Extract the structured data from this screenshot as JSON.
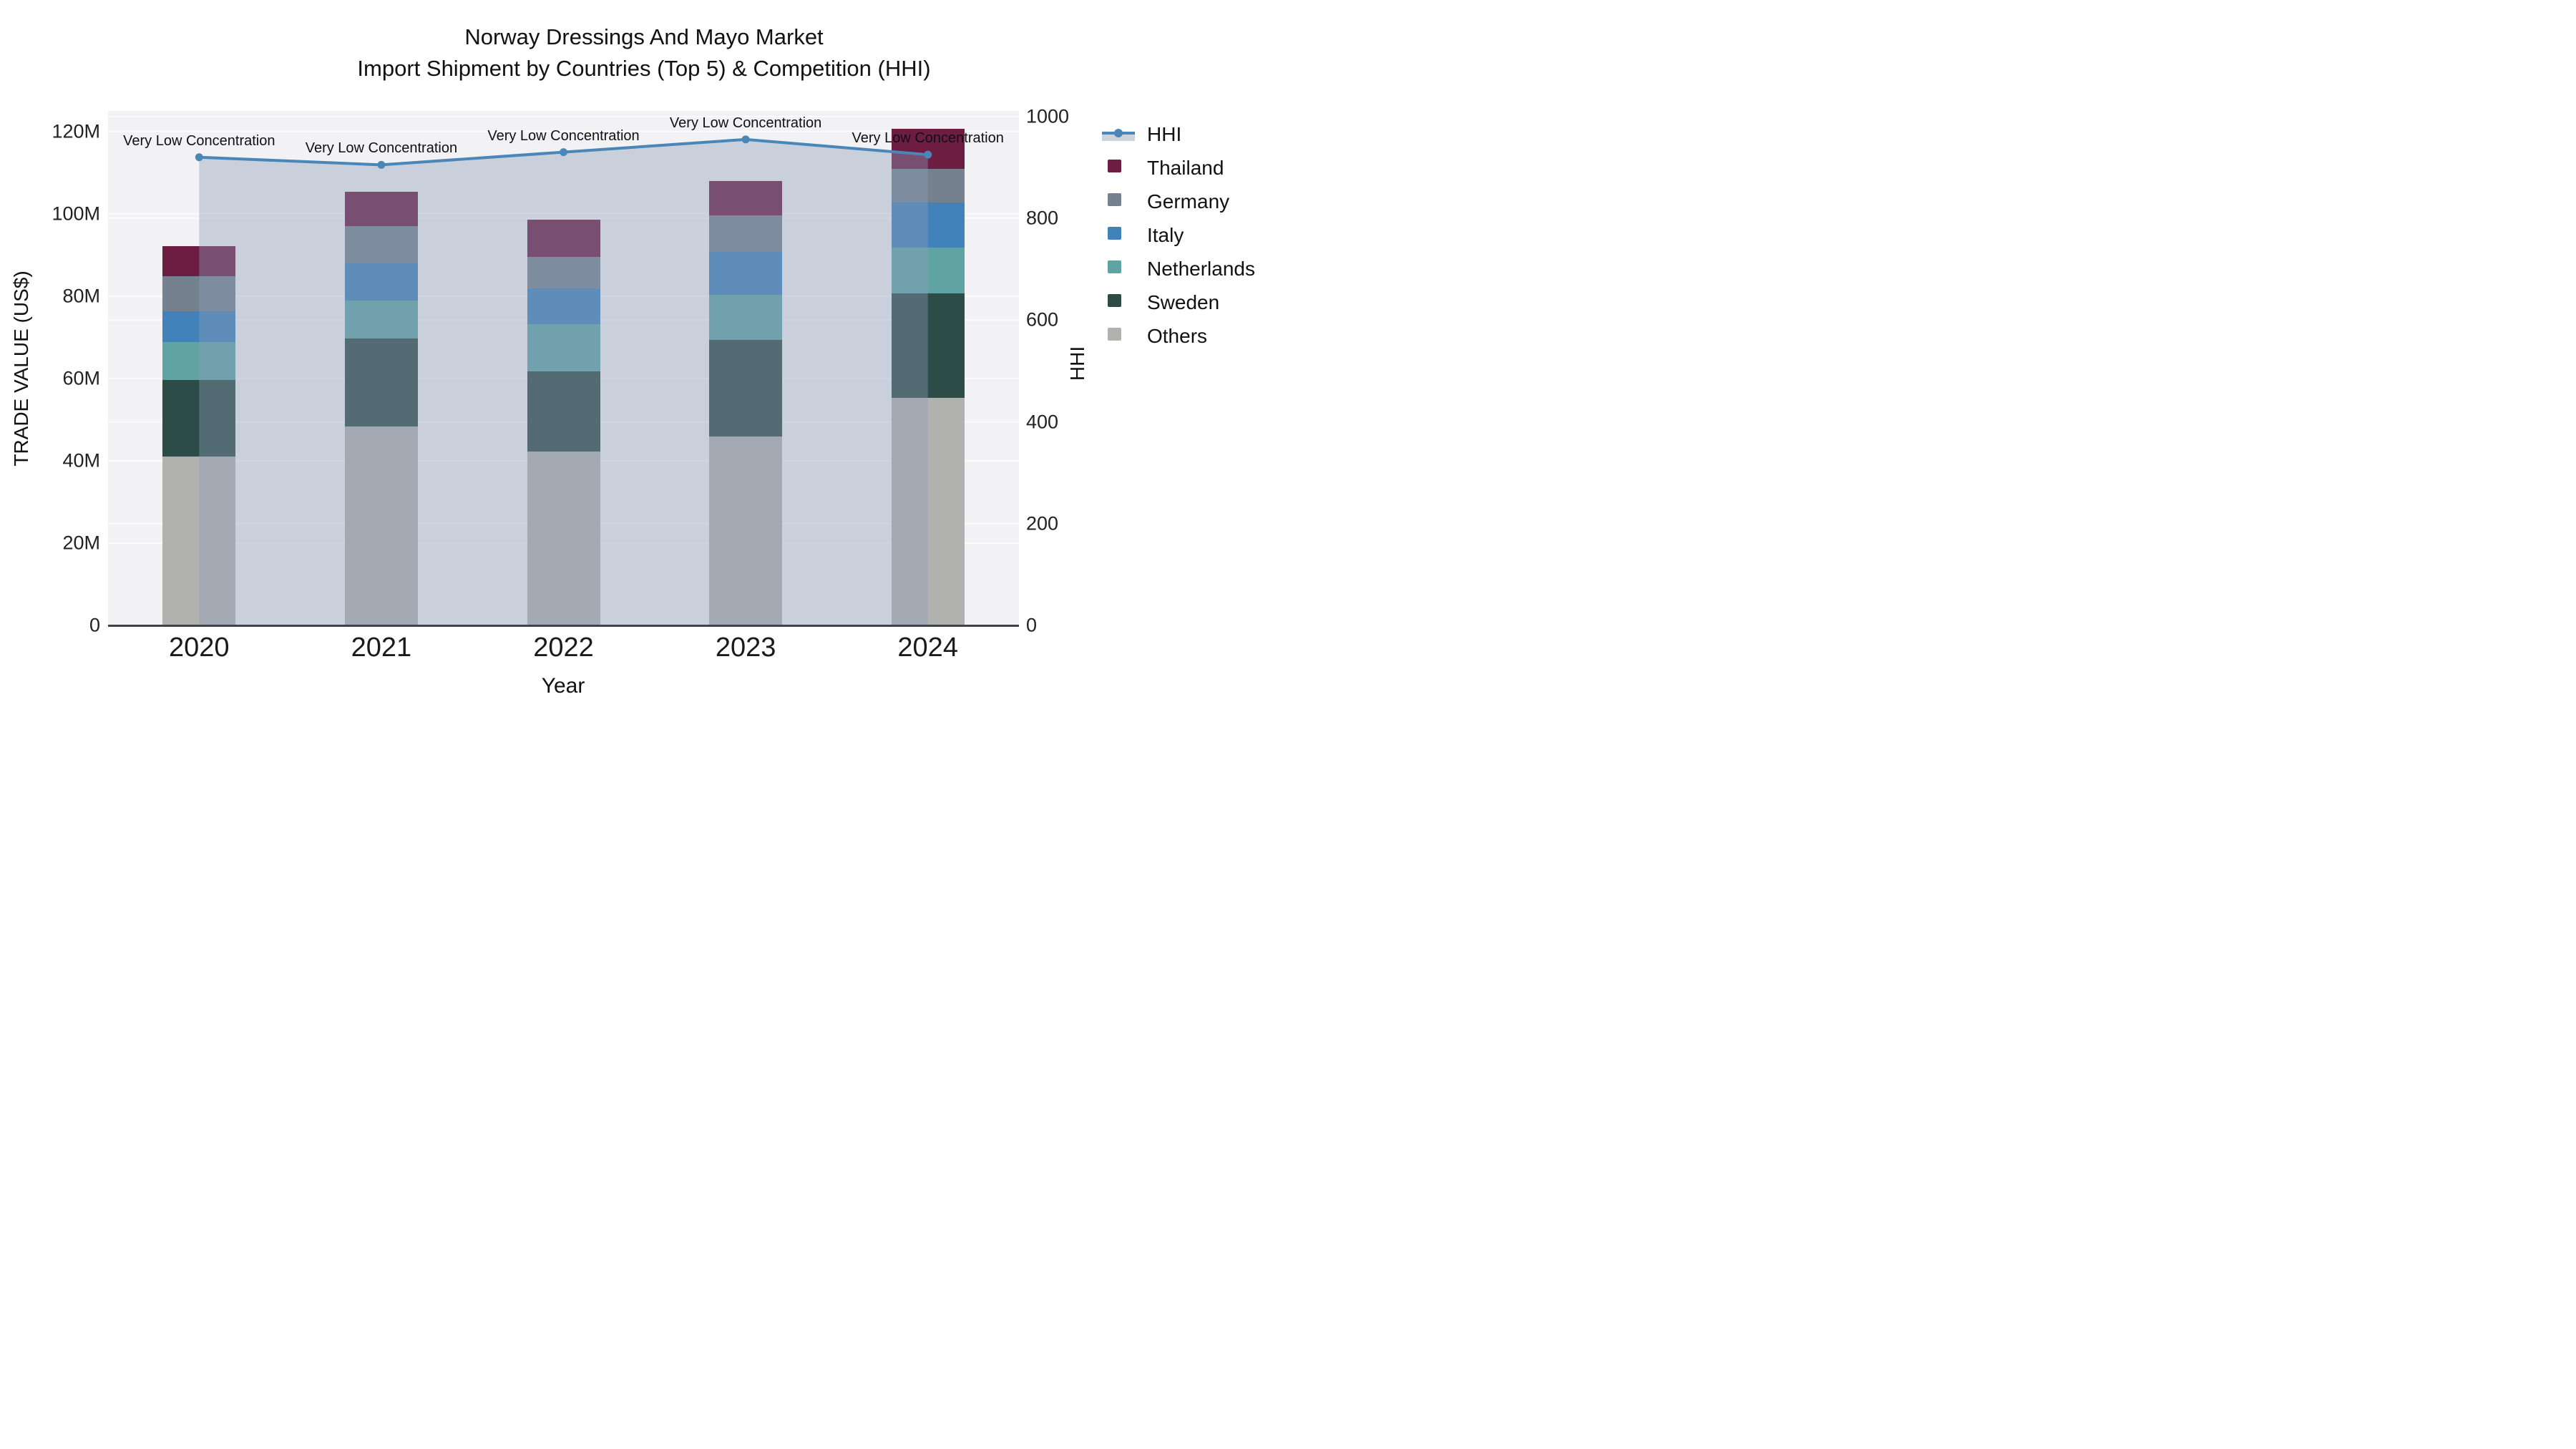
{
  "title": {
    "line1": "Norway Dressings And Mayo Market",
    "line2": "Import Shipment by Countries (Top 5) & Competition (HHI)"
  },
  "chart_data": {
    "type": "bar",
    "subtype": "stacked-bars-with-line-overlay-and-area-fill",
    "categories": [
      "2020",
      "2021",
      "2022",
      "2023",
      "2024"
    ],
    "values_unit": "Million US$",
    "series": [
      {
        "name": "Others",
        "color": "#b1b1af",
        "values": [
          41.0,
          48.3,
          42.3,
          45.9,
          55.3
        ]
      },
      {
        "name": "Sweden",
        "color": "#2d4c47",
        "values": [
          18.7,
          21.4,
          19.5,
          23.5,
          25.4
        ]
      },
      {
        "name": "Netherlands",
        "color": "#5fa4a3",
        "values": [
          9.2,
          9.3,
          11.4,
          11.0,
          11.1
        ]
      },
      {
        "name": "Italy",
        "color": "#4282bb",
        "values": [
          7.4,
          9.0,
          8.6,
          10.3,
          11.0
        ]
      },
      {
        "name": "Germany",
        "color": "#75818e",
        "values": [
          8.6,
          9.0,
          7.7,
          8.9,
          8.2
        ]
      },
      {
        "name": "Thailand",
        "color": "#6d1c42",
        "values": [
          7.2,
          8.4,
          9.1,
          8.4,
          9.6
        ]
      }
    ],
    "bar_totals": [
      92.1,
      105.4,
      98.6,
      108.0,
      120.6
    ],
    "line_series": {
      "name": "HHI",
      "color": "#4a86b8",
      "fill_color": "rgba(140,158,186,0.40)",
      "values": [
        920,
        905,
        930,
        955,
        925
      ],
      "axis": "right",
      "fill": "to-zero"
    },
    "annotations": [
      {
        "x": "2020",
        "text": "Very Low Concentration"
      },
      {
        "x": "2021",
        "text": "Very Low Concentration"
      },
      {
        "x": "2022",
        "text": "Very Low Concentration"
      },
      {
        "x": "2023",
        "text": "Very Low Concentration"
      },
      {
        "x": "2024",
        "text": "Very Low Concentration"
      }
    ],
    "xlabel": "Year",
    "ylabel_left": "TRADE VALUE (US$)",
    "ylabel_right": "HHI",
    "y_left_ticks": [
      "0",
      "20M",
      "40M",
      "60M",
      "80M",
      "100M",
      "120M"
    ],
    "y_left_tick_values": [
      0,
      20,
      40,
      60,
      80,
      100,
      120
    ],
    "y_left_range_m": [
      0,
      125
    ],
    "y_right_ticks": [
      "0",
      "200",
      "400",
      "600",
      "800",
      "1000"
    ],
    "y_right_tick_values": [
      0,
      200,
      400,
      600,
      800,
      1000
    ],
    "y_right_range": [
      0,
      1011
    ],
    "grid": "horizontal-both-axes",
    "legend_position": "right"
  },
  "legend": {
    "items": [
      {
        "label": "HHI",
        "type": "line",
        "color": "#4a86b8"
      },
      {
        "label": "Thailand",
        "type": "swatch",
        "color": "#6d1c42"
      },
      {
        "label": "Germany",
        "type": "swatch",
        "color": "#75818e"
      },
      {
        "label": "Italy",
        "type": "swatch",
        "color": "#4282bb"
      },
      {
        "label": "Netherlands",
        "type": "swatch",
        "color": "#5fa4a3"
      },
      {
        "label": "Sweden",
        "type": "swatch",
        "color": "#2d4c47"
      },
      {
        "label": "Others",
        "type": "swatch",
        "color": "#b1b1af"
      }
    ]
  },
  "colors": {
    "plot_bg": "#f2f2f4",
    "grid_line": "#fbfbfc",
    "axis_line": "#3c434a",
    "text": "#1c1c1c"
  }
}
